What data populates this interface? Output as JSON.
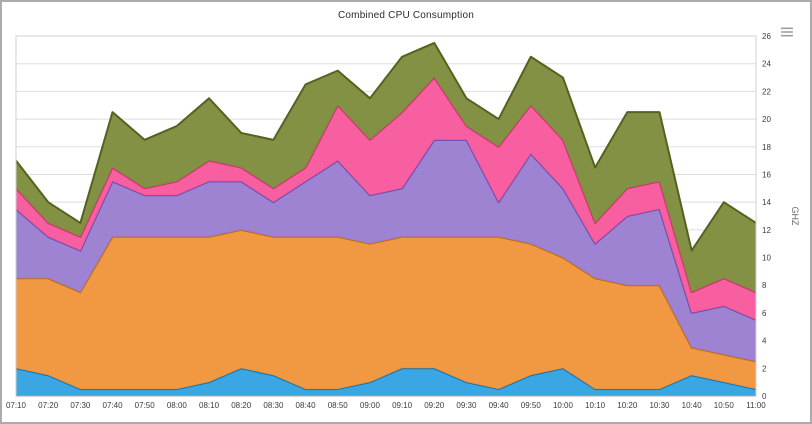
{
  "chart": {
    "title": "Combined CPU Consumption"
  },
  "toolbar": {
    "export_menu_icon": "export-menu"
  },
  "chart_data": {
    "type": "area",
    "stacked": true,
    "title": "Combined CPU Consumption",
    "ylabel": "GHZ",
    "xlabel": "",
    "ylim": [
      0,
      26
    ],
    "ytick_step": 2,
    "grid": true,
    "legend": "none",
    "categories": [
      "07:10",
      "07:20",
      "07:30",
      "07:40",
      "07:50",
      "08:00",
      "08:10",
      "08:20",
      "08:30",
      "08:40",
      "08:50",
      "09:00",
      "09:10",
      "09:20",
      "09:30",
      "09:40",
      "09:50",
      "10:00",
      "10:10",
      "10:20",
      "10:30",
      "10:40",
      "10:50",
      "11:00"
    ],
    "series": [
      {
        "name": "blue",
        "color": "#35a3e3",
        "border": "#1273ad",
        "values": [
          2,
          1.5,
          0.5,
          0.5,
          0.5,
          0.5,
          1,
          2,
          1.5,
          0.5,
          0.5,
          1,
          2,
          2,
          1,
          0.5,
          1.5,
          2,
          0.5,
          0.5,
          0.5,
          1.5,
          1,
          0.5
        ]
      },
      {
        "name": "orange",
        "color": "#f0953c",
        "border": "#c06c14",
        "values": [
          6.5,
          7,
          7,
          11,
          11,
          11,
          10.5,
          10,
          10,
          11,
          11,
          10,
          9.5,
          9.5,
          10.5,
          11,
          9.5,
          8,
          8,
          7.5,
          7.5,
          2,
          2,
          2
        ]
      },
      {
        "name": "purple",
        "color": "#9a7fd1",
        "border": "#6a4caf",
        "values": [
          5,
          3,
          3,
          4,
          3,
          3,
          4,
          3.5,
          2.5,
          4,
          5.5,
          3.5,
          3.5,
          7,
          7,
          2.5,
          6.5,
          5,
          2.5,
          5,
          5.5,
          2.5,
          3.5,
          3
        ]
      },
      {
        "name": "pink",
        "color": "#f75a9d",
        "border": "#d3306f",
        "values": [
          1.5,
          1,
          1,
          1,
          0.5,
          1,
          1.5,
          1,
          1,
          1,
          4,
          4,
          5.5,
          4.5,
          1,
          4,
          3.5,
          3.5,
          1.5,
          2,
          2,
          1.5,
          2,
          2
        ]
      },
      {
        "name": "olive",
        "color": "#7f8d3f",
        "border": "#55621f",
        "values": [
          2,
          1.5,
          1,
          4,
          3.5,
          4,
          4.5,
          2.5,
          3.5,
          6,
          2.5,
          3,
          4,
          2.5,
          2,
          2,
          3.5,
          4.5,
          4,
          5.5,
          5,
          3,
          5.5,
          5
        ]
      }
    ],
    "style": {
      "grid_color": "#dedede",
      "plot_border_color": "#d0d0d0",
      "axis_line_color": "#a8a8a8",
      "tick_label_color": "#3c3c3c",
      "axis_title_color": "#6b6b6b"
    }
  }
}
